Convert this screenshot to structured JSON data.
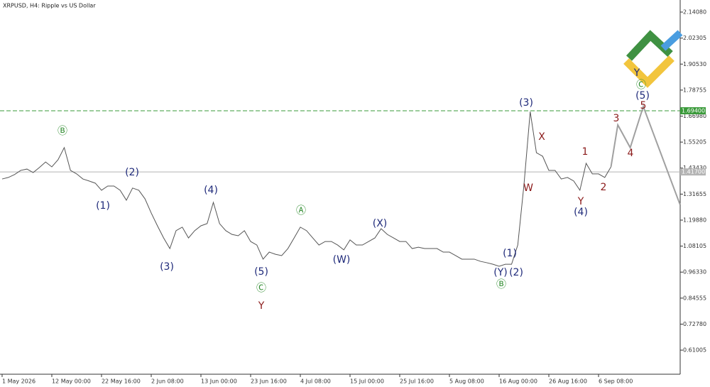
{
  "chart_data": {
    "type": "line",
    "title": "XRPUSD, H4:  Ripple vs US Dollar",
    "xlim": [
      -0.34,
      109.14
    ],
    "xticks": [
      {
        "value": 0,
        "label": "1 May 2026"
      },
      {
        "value": 8,
        "label": "12 May 00:00"
      },
      {
        "value": 16,
        "label": "22 May 16:00"
      },
      {
        "value": 24,
        "label": "2 Jun 08:00"
      },
      {
        "value": 32,
        "label": "13 Jun 00:00"
      },
      {
        "value": 40,
        "label": "23 Jun 16:00"
      },
      {
        "value": 48,
        "label": "4 Jul 08:00"
      },
      {
        "value": 56,
        "label": "15 Jul 00:00"
      },
      {
        "value": 64,
        "label": "25 Jul 16:00"
      },
      {
        "value": 72,
        "label": "5 Aug 08:00"
      },
      {
        "value": 80,
        "label": "16 Aug 00:00"
      },
      {
        "value": 88,
        "label": "26 Aug 16:00"
      },
      {
        "value": 96,
        "label": "6 Sep 08:00"
      }
    ],
    "ylim": [
      0.501,
      2.1955
    ],
    "yticks": [
      {
        "value": 2.1408,
        "label": "2.14080"
      },
      {
        "value": 2.02305,
        "label": "2.02305"
      },
      {
        "value": 1.9053,
        "label": "1.90530"
      },
      {
        "value": 1.78755,
        "label": "1.78755"
      },
      {
        "value": 1.6698,
        "label": "1.66980"
      },
      {
        "value": 1.55205,
        "label": "1.55205"
      },
      {
        "value": 1.4343,
        "label": "1.43430"
      },
      {
        "value": 1.31655,
        "label": "1.31655"
      },
      {
        "value": 1.1988,
        "label": "1.19880"
      },
      {
        "value": 1.08105,
        "label": "1.08105"
      },
      {
        "value": 0.9633,
        "label": "0.96330"
      },
      {
        "value": 0.84555,
        "label": "0.84555"
      },
      {
        "value": 0.7278,
        "label": "0.72780"
      },
      {
        "value": 0.61005,
        "label": "0.61005"
      }
    ],
    "series": [
      {
        "color": "#555555",
        "values": [
          1.385,
          1.392,
          1.405,
          1.424,
          1.43,
          1.414,
          1.437,
          1.462,
          1.44,
          1.472,
          1.527,
          1.424,
          1.408,
          1.385,
          1.376,
          1.366,
          1.334,
          1.353,
          1.353,
          1.334,
          1.289,
          1.344,
          1.334,
          1.295,
          1.231,
          1.173,
          1.118,
          1.07,
          1.151,
          1.167,
          1.118,
          1.151,
          1.173,
          1.183,
          1.279,
          1.183,
          1.151,
          1.134,
          1.128,
          1.151,
          1.102,
          1.086,
          1.022,
          1.054,
          1.044,
          1.038,
          1.07,
          1.118,
          1.167,
          1.151,
          1.118,
          1.086,
          1.102,
          1.102,
          1.086,
          1.064,
          1.109,
          1.086,
          1.086,
          1.102,
          1.118,
          1.16,
          1.134,
          1.118,
          1.102,
          1.102,
          1.07,
          1.076,
          1.07,
          1.07,
          1.07,
          1.054,
          1.054,
          1.038,
          1.022,
          1.022,
          1.022,
          1.012,
          1.006,
          0.999,
          0.99,
          0.999,
          0.999,
          1.086,
          1.36,
          1.69,
          1.504,
          1.488,
          1.424,
          1.424,
          1.385,
          1.392,
          1.376,
          1.334,
          1.456,
          1.408,
          1.408,
          1.392,
          1.44
        ]
      },
      {
        "color": "#a0a0a0",
        "x": [
          98,
          99.1,
          101.1,
          103.2,
          109.1
        ],
        "values": [
          1.44,
          1.63,
          1.527,
          1.713,
          1.27
        ]
      }
    ],
    "levels": [
      {
        "value": 1.694,
        "label": "1.69400",
        "color": "#3a9a3a",
        "style": "dashed"
      },
      {
        "value": 1.417,
        "label": "1.41700",
        "color": "#b4b4b4",
        "style": "solid"
      }
    ],
    "annotations": [
      {
        "text": "Ⓑ",
        "color": "#2e8b2e"
      },
      {
        "text": "(2)",
        "color": "#1f2a7a"
      },
      {
        "text": "(1)",
        "color": "#1f2a7a"
      },
      {
        "text": "(4)",
        "color": "#1f2a7a"
      },
      {
        "text": "(3)",
        "color": "#1f2a7a"
      },
      {
        "text": "Ⓐ",
        "color": "#2e8b2e"
      },
      {
        "text": "(5)",
        "color": "#1f2a7a"
      },
      {
        "text": "Ⓒ",
        "color": "#2e8b2e"
      },
      {
        "text": "Y",
        "color": "#8b1a1a"
      },
      {
        "text": "(W)",
        "color": "#1f2a7a"
      },
      {
        "text": "(X)",
        "color": "#1f2a7a"
      },
      {
        "text": "(1)",
        "color": "#1f2a7a"
      },
      {
        "text": "(Y)",
        "color": "#1f2a7a"
      },
      {
        "text": "(2)",
        "color": "#1f2a7a"
      },
      {
        "text": "Ⓑ",
        "color": "#2e8b2e"
      },
      {
        "text": "(3)",
        "color": "#1f2a7a"
      },
      {
        "text": "W",
        "color": "#8b1a1a"
      },
      {
        "text": "X",
        "color": "#8b1a1a"
      },
      {
        "text": "Y",
        "color": "#8b1a1a"
      },
      {
        "text": "(4)",
        "color": "#1f2a7a"
      },
      {
        "text": "1",
        "color": "#8b1a1a"
      },
      {
        "text": "2",
        "color": "#8b1a1a"
      },
      {
        "text": "3",
        "color": "#8b1a1a"
      },
      {
        "text": "4",
        "color": "#8b1a1a"
      },
      {
        "text": "5",
        "color": "#8b1a1a"
      },
      {
        "text": "(5)",
        "color": "#1f2a7a"
      },
      {
        "text": "Ⓒ",
        "color": "#2e8b2e"
      },
      {
        "text": "Y",
        "color": "#1f2a7a"
      }
    ]
  }
}
